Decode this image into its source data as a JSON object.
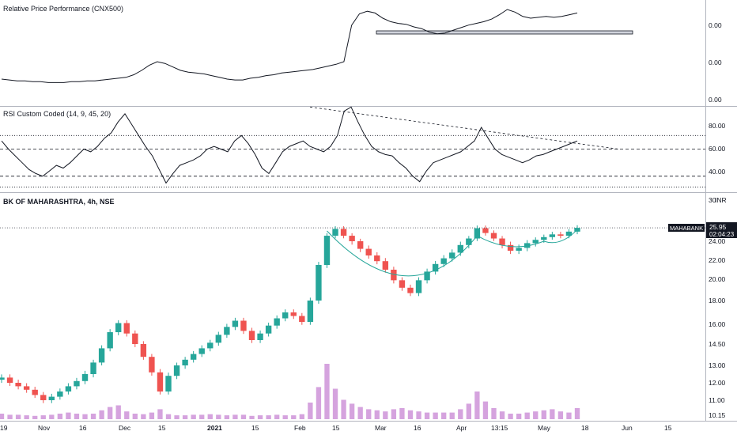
{
  "chart_data": [
    {
      "type": "line",
      "pane": "relative-price",
      "title": "Relative Price Performance (CNX500)",
      "axis_ticks": [
        "0.00",
        "0.00",
        "0.00"
      ],
      "line_color": "#131722",
      "series": [
        {
          "values": [
            0.2,
            0.19,
            0.18,
            0.18,
            0.17,
            0.17,
            0.16,
            0.16,
            0.16,
            0.17,
            0.17,
            0.18,
            0.18,
            0.19,
            0.2,
            0.21,
            0.22,
            0.25,
            0.3,
            0.36,
            0.4,
            0.38,
            0.34,
            0.3,
            0.28,
            0.27,
            0.26,
            0.24,
            0.22,
            0.2,
            0.19,
            0.19,
            0.21,
            0.22,
            0.24,
            0.25,
            0.27,
            0.28,
            0.29,
            0.3,
            0.31,
            0.33,
            0.35,
            0.37,
            0.4,
            0.82,
            0.95,
            0.98,
            0.96,
            0.9,
            0.86,
            0.84,
            0.83,
            0.8,
            0.78,
            0.74,
            0.72,
            0.73,
            0.76,
            0.79,
            0.82,
            0.84,
            0.86,
            0.89,
            0.94,
            1.0,
            0.97,
            0.92,
            0.9,
            0.91,
            0.92,
            0.91,
            0.92,
            0.94,
            0.96
          ]
        }
      ]
    },
    {
      "type": "line",
      "pane": "rsi",
      "title": "RSI Custom Coded (14, 9, 45, 20)",
      "axis_ticks": [
        "80.00",
        "60.00",
        "40.00"
      ],
      "ylim": [
        30,
        90
      ],
      "levels": [
        70,
        60,
        40,
        32
      ],
      "line_color": "#131722",
      "trendline": {
        "from": [
          45,
          91
        ],
        "to": [
          80,
          60
        ]
      },
      "series": [
        {
          "values": [
            66,
            60,
            55,
            50,
            45,
            42,
            40,
            44,
            48,
            46,
            50,
            55,
            60,
            58,
            62,
            68,
            72,
            80,
            86,
            78,
            70,
            62,
            55,
            45,
            35,
            42,
            48,
            50,
            52,
            55,
            60,
            62,
            60,
            58,
            66,
            70,
            64,
            56,
            46,
            42,
            50,
            58,
            62,
            64,
            66,
            62,
            60,
            58,
            62,
            70,
            88,
            91,
            80,
            70,
            62,
            58,
            56,
            55,
            50,
            46,
            40,
            36,
            44,
            50,
            52,
            54,
            56,
            58,
            62,
            66,
            76,
            68,
            60,
            56,
            54,
            52,
            50,
            52,
            55,
            56,
            58,
            60,
            62,
            64,
            66
          ]
        }
      ]
    },
    {
      "type": "candlestick",
      "pane": "price",
      "title": "BK OF MAHARASHTRA, 4h, NSE",
      "currency": "INR",
      "axis_ticks": [
        "30",
        "24.00",
        "22.00",
        "20.00",
        "18.00",
        "16.00",
        "14.50",
        "13.00",
        "12.00",
        "11.00",
        "10.15"
      ],
      "tick_values": [
        30,
        24,
        22,
        20,
        18,
        16,
        14.5,
        13,
        12,
        11,
        10.15
      ],
      "ylim": [
        10.0,
        30.0
      ],
      "last_price": {
        "ticker": "MAHABANK",
        "price": "25.95",
        "timer": "02:04:23",
        "value": 25.95
      },
      "colors": {
        "up": "#26a69a",
        "down": "#ef5350",
        "volume": "#ce93d8",
        "pattern": "#26a69a"
      },
      "x_labels": [
        "19",
        "Nov",
        "16",
        "Dec",
        "15",
        "2021",
        "15",
        "Feb",
        "15",
        "Mar",
        "16",
        "Apr",
        "13:15",
        "May",
        "18",
        "Jun",
        "15"
      ],
      "closes": [
        12.3,
        12.0,
        11.8,
        11.6,
        11.3,
        11.0,
        11.2,
        11.5,
        11.8,
        12.1,
        12.5,
        13.2,
        14.2,
        15.4,
        16.1,
        15.3,
        14.5,
        13.6,
        12.6,
        11.5,
        12.4,
        13.0,
        13.4,
        13.8,
        14.2,
        14.6,
        15.2,
        15.8,
        16.3,
        15.5,
        14.8,
        15.3,
        15.9,
        16.5,
        17.0,
        16.7,
        16.2,
        18.0,
        21.5,
        24.8,
        25.8,
        24.8,
        24.0,
        23.2,
        22.5,
        21.9,
        21.0,
        19.9,
        19.2,
        18.7,
        19.9,
        20.8,
        21.6,
        22.2,
        22.8,
        23.6,
        24.4,
        25.9,
        25.2,
        24.4,
        23.6,
        23.0,
        23.3,
        23.8,
        24.2,
        24.6,
        25.0,
        24.8,
        25.4,
        25.95
      ],
      "volumes": [
        0.1,
        0.08,
        0.08,
        0.07,
        0.06,
        0.07,
        0.08,
        0.1,
        0.12,
        0.1,
        0.09,
        0.1,
        0.16,
        0.22,
        0.25,
        0.14,
        0.1,
        0.09,
        0.12,
        0.18,
        0.09,
        0.07,
        0.07,
        0.08,
        0.08,
        0.09,
        0.08,
        0.07,
        0.08,
        0.08,
        0.06,
        0.07,
        0.07,
        0.08,
        0.07,
        0.07,
        0.09,
        0.3,
        0.58,
        1.0,
        0.55,
        0.35,
        0.28,
        0.22,
        0.18,
        0.16,
        0.14,
        0.18,
        0.2,
        0.16,
        0.14,
        0.12,
        0.12,
        0.12,
        0.12,
        0.18,
        0.28,
        0.5,
        0.32,
        0.2,
        0.14,
        0.1,
        0.1,
        0.12,
        0.14,
        0.16,
        0.18,
        0.14,
        0.12,
        0.2
      ]
    }
  ]
}
